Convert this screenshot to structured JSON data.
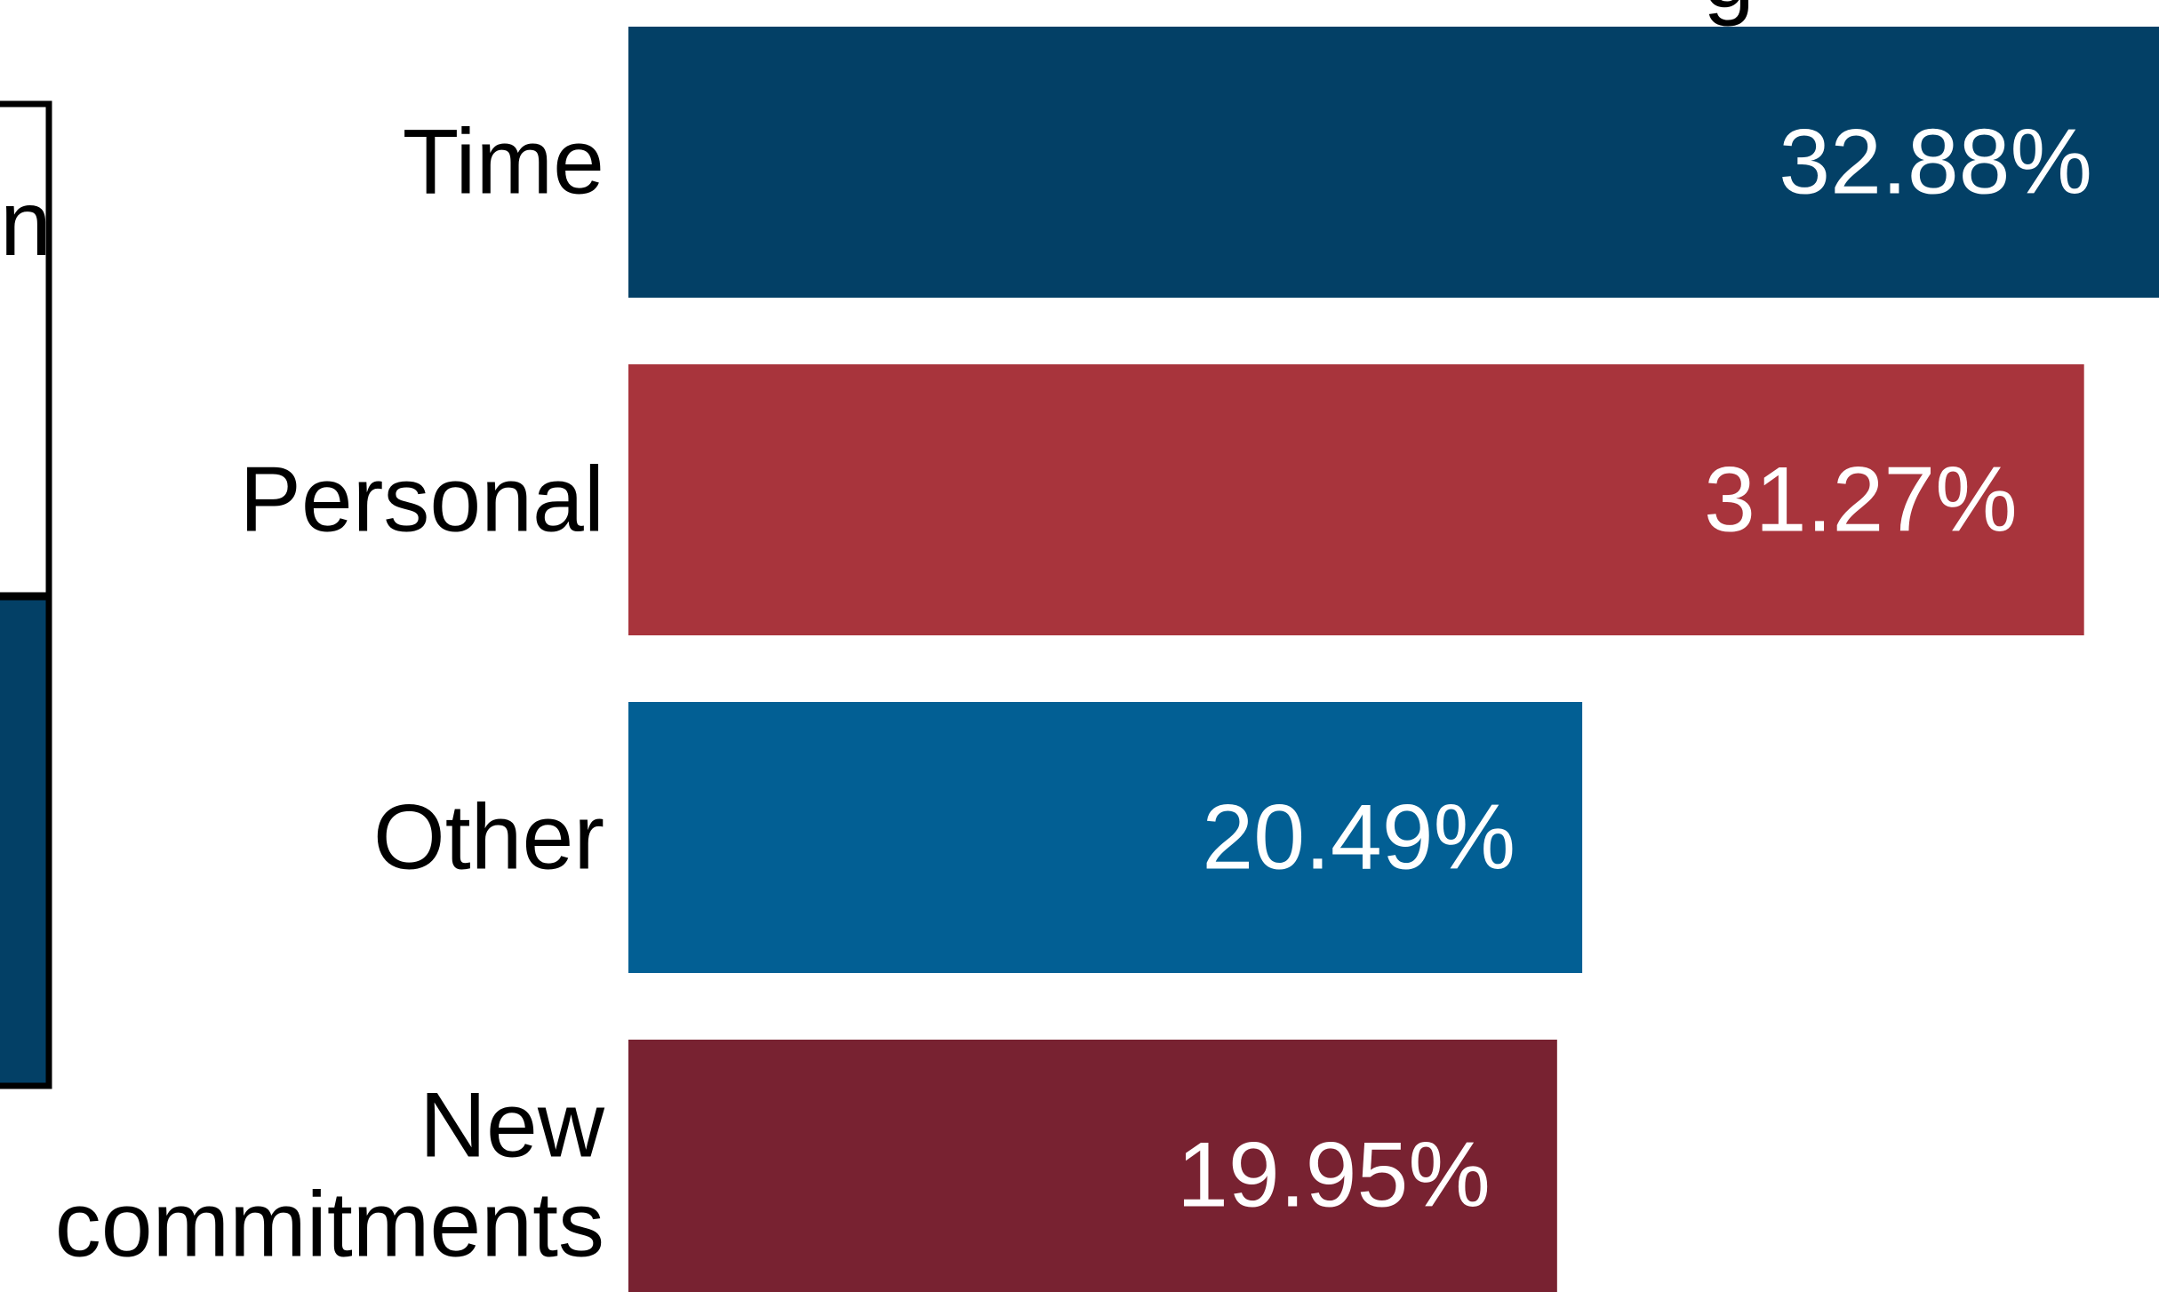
{
  "chart_data": {
    "type": "bar",
    "orientation": "horizontal",
    "title_fragment": "g",
    "categories": [
      [
        "Time"
      ],
      [
        "Personal"
      ],
      [
        "Other"
      ],
      [
        "New",
        "commitments"
      ]
    ],
    "values": [
      32.88,
      31.27,
      20.49,
      19.95
    ],
    "value_labels": [
      "32.88%",
      "31.27%",
      "20.49%",
      "19.95%"
    ],
    "colors": [
      "#034066",
      "#a8343c",
      "#025f94",
      "#782231"
    ],
    "xlim": [
      0,
      32.88
    ],
    "grid": false,
    "legend": "none"
  },
  "left_panel": {
    "label_fragment": "n",
    "bar_color": "#034066"
  }
}
